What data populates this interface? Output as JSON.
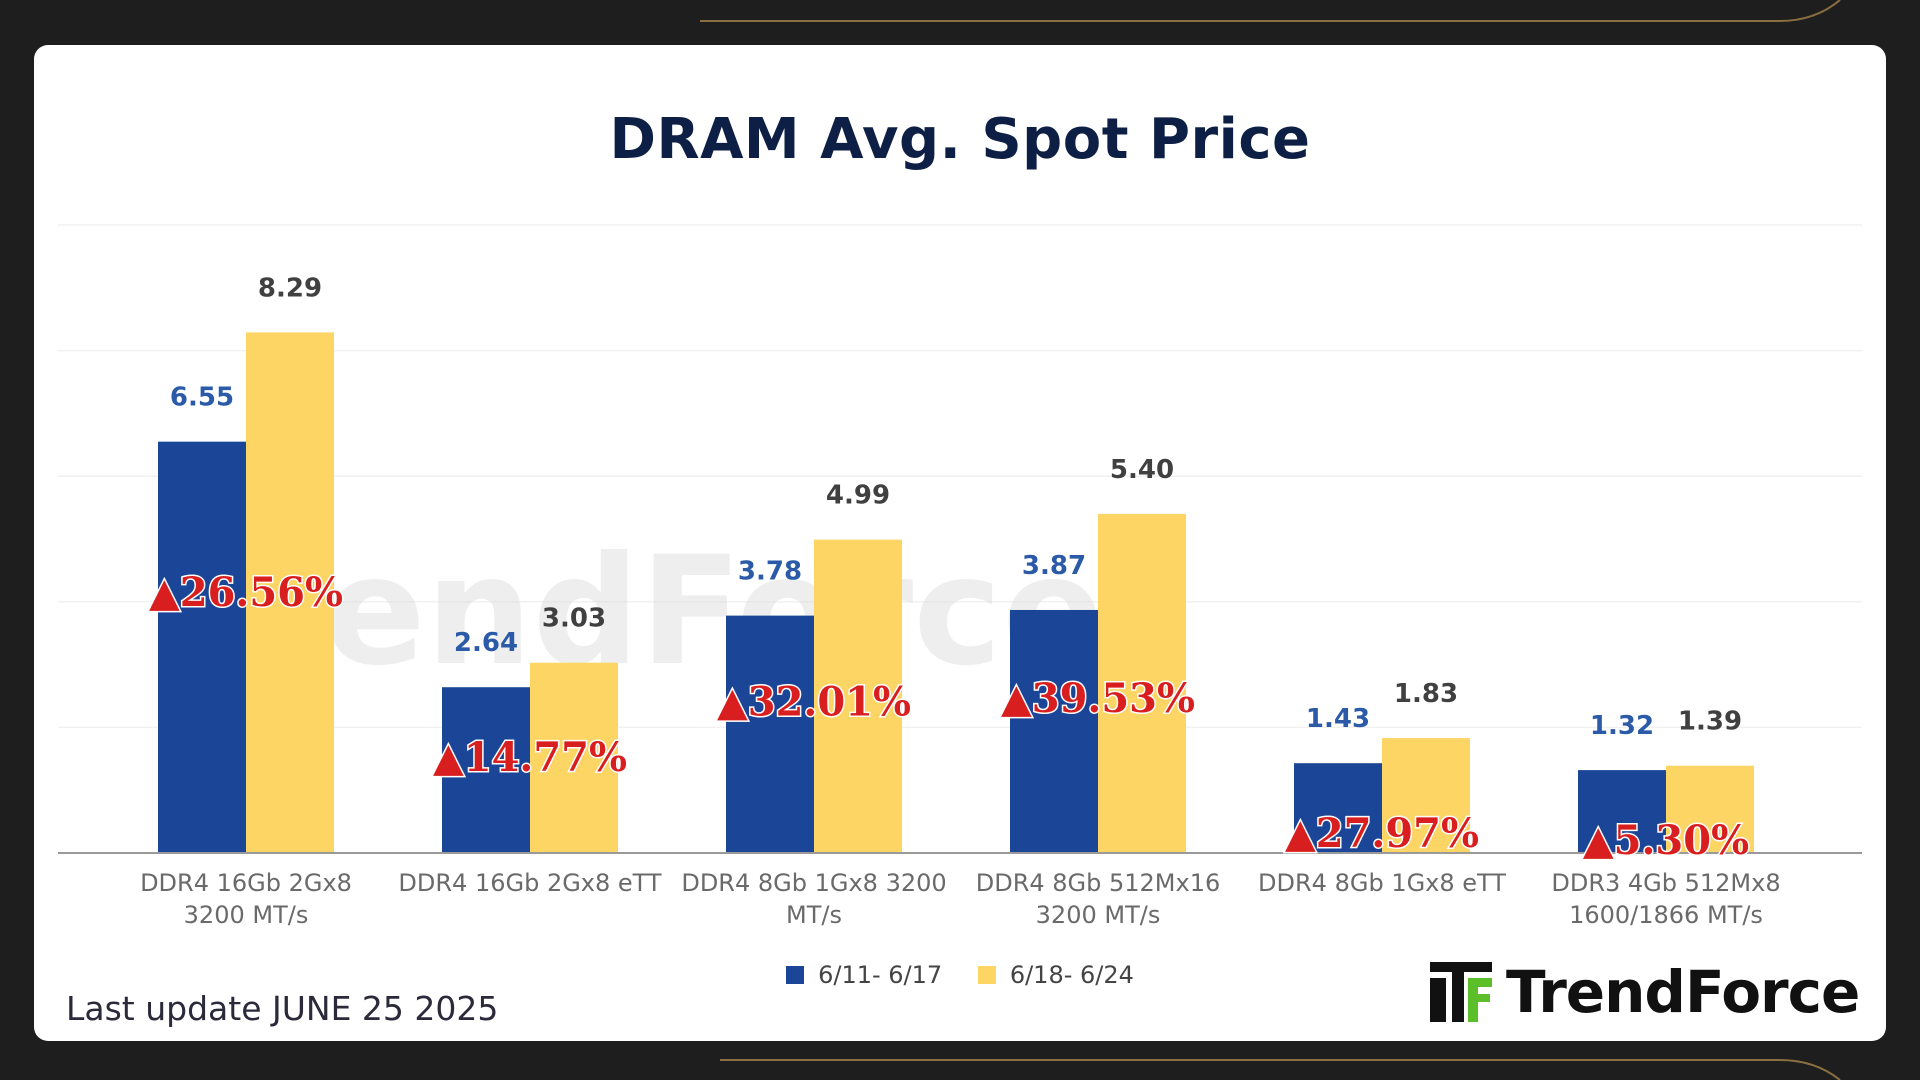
{
  "colors": {
    "series1": "#1b4596",
    "series2": "#fdd564",
    "series1_label": "#2b5aa8",
    "series2_label": "#404040",
    "pct": "#d81e1e",
    "logo_green": "#5cbf2a"
  },
  "footer": {
    "last_update": "Last update JUNE 25  2025"
  },
  "brand": {
    "name": "TrendForce",
    "watermark": "TrendForce"
  },
  "chart_data": {
    "type": "bar",
    "title": "DRAM Avg. Spot Price",
    "xlabel": "",
    "ylabel": "",
    "ylim": [
      0,
      10
    ],
    "grid": true,
    "legend_position": "bottom",
    "categories": [
      [
        "DDR4 16Gb 2Gx8",
        "3200 MT/s"
      ],
      [
        "DDR4 16Gb 2Gx8 eTT"
      ],
      [
        "DDR4 8Gb 1Gx8 3200",
        "MT/s"
      ],
      [
        "DDR4 8Gb 512Mx16",
        "3200 MT/s"
      ],
      [
        "DDR4 8Gb 1Gx8 eTT"
      ],
      [
        "DDR3 4Gb 512Mx8",
        "1600/1866  MT/s"
      ]
    ],
    "series": [
      {
        "name": "6/11- 6/17",
        "values": [
          6.55,
          2.64,
          3.78,
          3.87,
          1.43,
          1.32
        ],
        "labels": [
          "6.55",
          "2.64",
          "3.78",
          "3.87",
          "1.43",
          "1.32"
        ]
      },
      {
        "name": "6/18- 6/24",
        "values": [
          8.29,
          3.03,
          4.99,
          5.4,
          1.83,
          1.39
        ],
        "labels": [
          "8.29",
          "3.03",
          "4.99",
          "5.40",
          "1.83",
          "1.39"
        ]
      }
    ],
    "changes": [
      "▲26.56%",
      "▲14.77%",
      "▲32.01%",
      "▲39.53%",
      "▲27.97%",
      "▲5.30%"
    ]
  }
}
